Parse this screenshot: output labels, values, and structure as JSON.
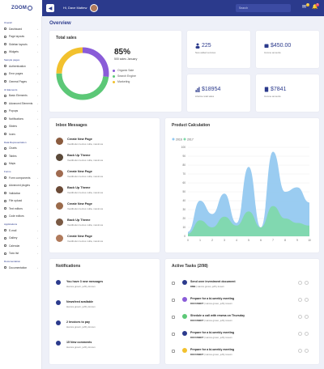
{
  "header": {
    "logo": "ZOOM",
    "greeting": "Hi, Dave Mattew",
    "search_placeholder": "Search",
    "mail_badge": "3",
    "bell_badge": "5"
  },
  "sidebar": {
    "sections": [
      {
        "title": "Overall",
        "items": [
          "Dashboard",
          "Page layouts",
          "Sidebar layouts",
          "Widgets"
        ]
      },
      {
        "title": "UI Elements",
        "items": [
          "Basic Elements",
          "Advanced Elements",
          "Popups",
          "Notifications",
          "Sliders",
          "Icons"
        ]
      },
      {
        "title": "Data Representation",
        "items": [
          "Charts",
          "Tables",
          "Maps"
        ]
      },
      {
        "title": "Forms",
        "items": [
          "Form components",
          "Advanced plugins",
          "Validation",
          "File upload",
          "Text editors",
          "Code editors"
        ]
      },
      {
        "title": "Applications",
        "items": [
          "E-mail",
          "Gallery",
          "Calendar",
          "Todo list"
        ]
      },
      {
        "title": "Documentation",
        "items": [
          "Documentation"
        ]
      }
    ],
    "extra_sections": [
      {
        "title": "Sample pages",
        "items": [
          "Authentication",
          "Error pages",
          "General Pages"
        ]
      }
    ]
  },
  "page": {
    "title": "Overview"
  },
  "total_sales": {
    "title": "Total sales",
    "percent": "85%",
    "subtitle": "500 sales January",
    "legend": [
      {
        "label": "Organic Sale",
        "color": "#8a5cd8"
      },
      {
        "label": "Search Engine",
        "color": "#5cc877"
      },
      {
        "label": "Marketing",
        "color": "#f2c12e"
      }
    ],
    "donut": [
      {
        "name": "Organic Sale",
        "value": 27,
        "color": "#8a5cd8"
      },
      {
        "name": "Search Engine",
        "value": 48,
        "color": "#5cc877"
      },
      {
        "name": "Marketing",
        "value": 25,
        "color": "#f2c12e"
      }
    ]
  },
  "stats": [
    {
      "value": "225",
      "label": "New added services",
      "icon": "users-icon"
    },
    {
      "value": "$450.00",
      "label": "Income amounts",
      "icon": "wallet-icon"
    },
    {
      "value": "$18954",
      "label": "Lifetime total sales",
      "icon": "chart-icon"
    },
    {
      "value": "$7841",
      "label": "Income amounts",
      "icon": "document-icon"
    }
  ],
  "inbox": {
    "title": "Inbox Messages",
    "messages": [
      {
        "title": "Create New Page",
        "text": "Vestibulum lectus nulla, maximus"
      },
      {
        "title": "Back Up Theme",
        "text": "Vestibulum lectus nulla, maximus"
      },
      {
        "title": "Create New Page",
        "text": "Vestibulum lectus nulla, maximus"
      },
      {
        "title": "Back Up Theme",
        "text": "Vestibulum lectus nulla, maximus"
      },
      {
        "title": "Create New Page",
        "text": "Vestibulum lectus nulla, maximus"
      },
      {
        "title": "Back Up Theme",
        "text": "Vestibulum lectus nulla, maximus"
      },
      {
        "title": "Create New Page",
        "text": "Vestibulum lectus nulla, maximus"
      }
    ]
  },
  "chart_data": {
    "type": "area",
    "title": "Product Calculation",
    "x": [
      0,
      1,
      2,
      3,
      4,
      5,
      6,
      7,
      8,
      9,
      10
    ],
    "ylim": [
      0,
      100
    ],
    "yticks": [
      0,
      10,
      20,
      30,
      40,
      50,
      60,
      70,
      80,
      90,
      100
    ],
    "series": [
      {
        "name": "2016",
        "color": "#8fc7f0",
        "values": [
          5,
          40,
          25,
          48,
          15,
          78,
          10,
          95,
          50,
          55,
          38
        ]
      },
      {
        "name": "2017",
        "color": "#7ed9a8",
        "values": [
          3,
          18,
          10,
          22,
          12,
          28,
          10,
          34,
          20,
          15,
          12
        ]
      }
    ]
  },
  "notifications": {
    "title": "Notifications",
    "items": [
      {
        "title": "You have 3 new messages",
        "meta": "Hamra grown, jeffry known"
      },
      {
        "title": "Newsfeed available",
        "meta": "Hamra grown, jeffry known"
      },
      {
        "title": "2 Invoices to pay",
        "meta": "Hamra grown, jeffry known"
      },
      {
        "title": "15 New comments",
        "meta": "Hamra grown, jeffry known"
      }
    ]
  },
  "tasks": {
    "title": "Active Tasks (2/98)",
    "items": [
      {
        "title": "Send over investment document",
        "tag": "DMB",
        "tag_color": "#2b3a8c",
        "meta": "Hamra grown, jeffry known"
      },
      {
        "title": "Prepare for a bi-weekly meeting",
        "tag": "DOCUMENT",
        "tag_color": "#8a5cd8",
        "meta": "Hamra grown, jeffry known"
      },
      {
        "title": "Shedule a call with rewma on Thursday",
        "tag": "DOCUMENT",
        "tag_color": "#5cc877",
        "meta": "Hamra grown, jeffry known"
      },
      {
        "title": "Prepare for a bi-weekly meeting",
        "tag": "DOCUMENT",
        "tag_color": "#2b3a8c",
        "meta": "Hamra grown, jeffry known"
      },
      {
        "title": "Prepare for a bi-weekly meeting",
        "tag": "DOCUMENT",
        "tag_color": "#f2c12e",
        "meta": "Hamra grown, jeffry known"
      }
    ]
  }
}
